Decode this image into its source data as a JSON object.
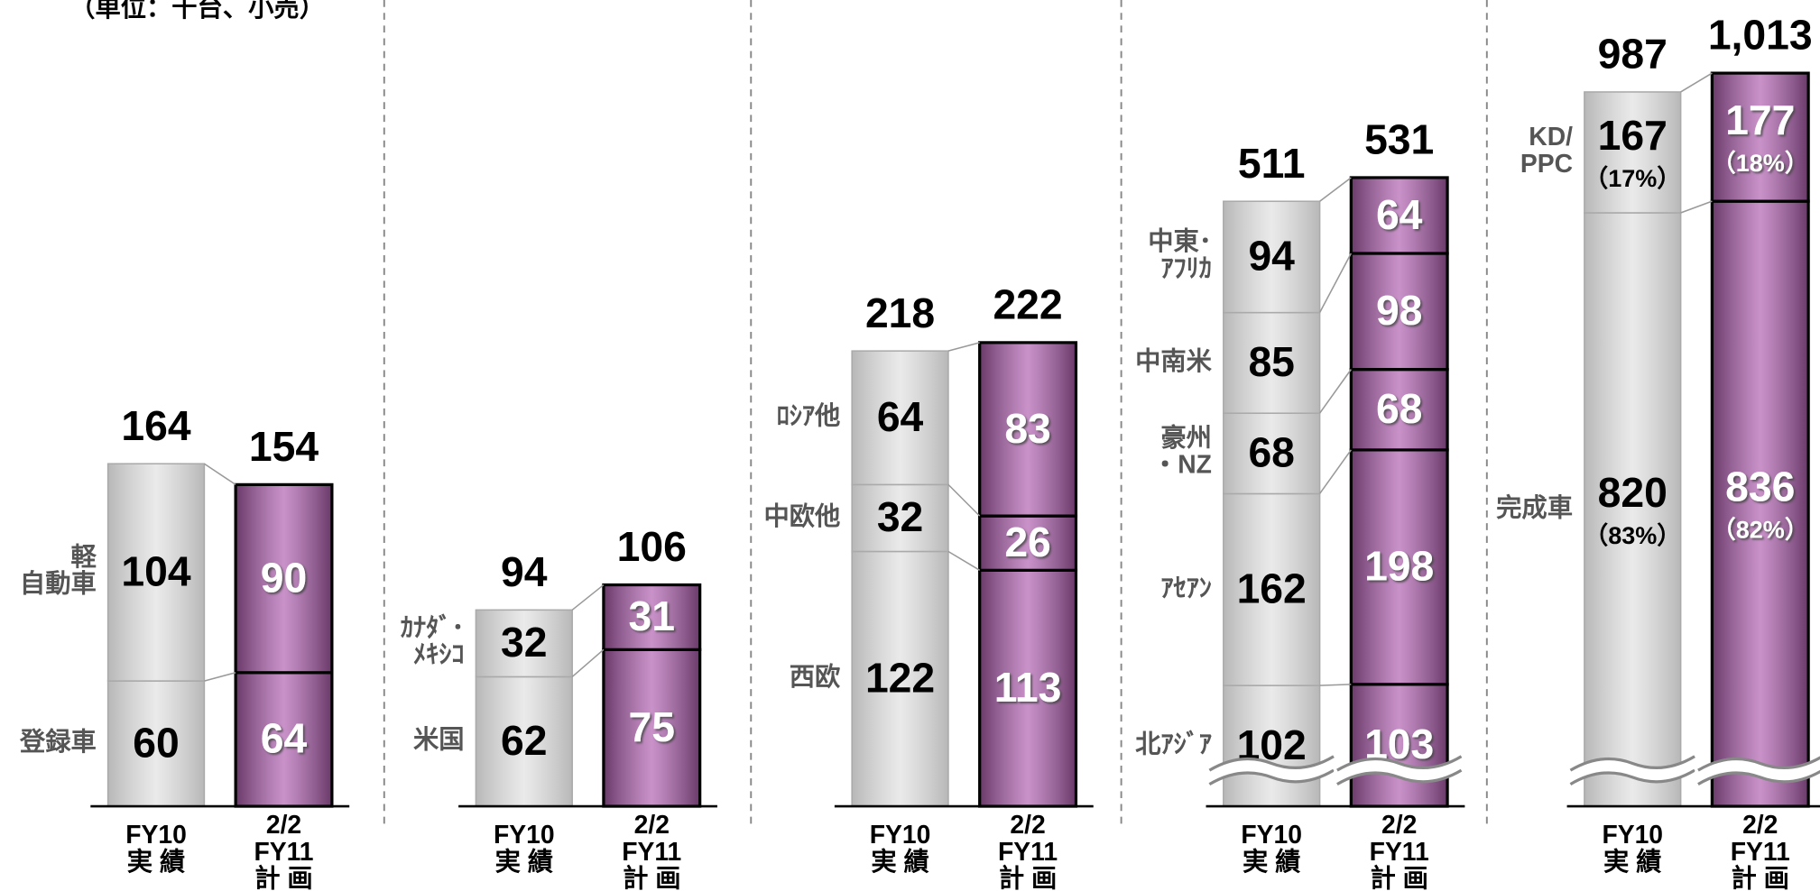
{
  "title": "（単位：千台、小売）",
  "chart_data": [
    {
      "type": "bar",
      "stacked": true,
      "categories": [
        "FY10\n実 績",
        "2/2\nFY11\n計 画"
      ],
      "bar_colors": [
        "#e6e6e6",
        "#b060b0"
      ],
      "ylim": [
        0,
        386
      ],
      "totals": [
        164,
        154
      ],
      "series": [
        {
          "name": "登録車",
          "values": [
            60,
            64
          ]
        },
        {
          "name": "軽\n自動車",
          "values": [
            104,
            90
          ]
        }
      ]
    },
    {
      "type": "bar",
      "stacked": true,
      "categories": [
        "FY10\n実 績",
        "2/2\nFY11\n計 画"
      ],
      "bar_colors": [
        "#e6e6e6",
        "#b060b0"
      ],
      "ylim": [
        0,
        386
      ],
      "totals": [
        94,
        106
      ],
      "series": [
        {
          "name": "米国",
          "values": [
            62,
            75
          ]
        },
        {
          "name": "ｶﾅﾀﾞ･\nﾒｷｼｺ",
          "values": [
            32,
            31
          ]
        }
      ]
    },
    {
      "type": "bar",
      "stacked": true,
      "categories": [
        "FY10\n実 績",
        "2/2\nFY11\n計 画"
      ],
      "bar_colors": [
        "#e6e6e6",
        "#b060b0"
      ],
      "ylim": [
        0,
        386
      ],
      "totals": [
        218,
        222
      ],
      "series": [
        {
          "name": "西欧",
          "values": [
            122,
            113
          ]
        },
        {
          "name": "中欧他",
          "values": [
            32,
            26
          ]
        },
        {
          "name": "ﾛｼｱ他",
          "values": [
            64,
            83
          ]
        }
      ]
    },
    {
      "type": "bar",
      "stacked": true,
      "axis_break": true,
      "categories": [
        "FY10\n実 績",
        "2/2\nFY11\n計 画"
      ],
      "bar_colors": [
        "#e6e6e6",
        "#b060b0"
      ],
      "ylim": [
        0,
        681
      ],
      "totals": [
        511,
        531
      ],
      "series": [
        {
          "name": "北ｱｼﾞｱ",
          "values": [
            102,
            103
          ]
        },
        {
          "name": "ｱｾｱﾝ",
          "values": [
            162,
            198
          ]
        },
        {
          "name": "豪州\n・NZ",
          "values": [
            68,
            68
          ]
        },
        {
          "name": "中南米",
          "values": [
            85,
            98
          ]
        },
        {
          "name": "中東･\nｱﾌﾘｶ",
          "values": [
            94,
            64
          ]
        }
      ]
    },
    {
      "type": "bar",
      "stacked": true,
      "axis_break": true,
      "categories": [
        "FY10\n実 績",
        "2/2\nFY11\n計 画"
      ],
      "bar_colors": [
        "#e6e6e6",
        "#b060b0"
      ],
      "ylim": [
        0,
        1114
      ],
      "totals": [
        987,
        {
          "value": 1013,
          "label": "1,013"
        }
      ],
      "series": [
        {
          "name": "完成車",
          "values": [
            820,
            836
          ],
          "shares": [
            83,
            82
          ],
          "share_labels": [
            "（83%）",
            "（82%）"
          ]
        },
        {
          "name": "KD/\nPPC",
          "values": [
            167,
            177
          ],
          "shares": [
            17,
            18
          ],
          "share_labels": [
            "（17%）",
            "（18%）"
          ]
        }
      ]
    }
  ]
}
